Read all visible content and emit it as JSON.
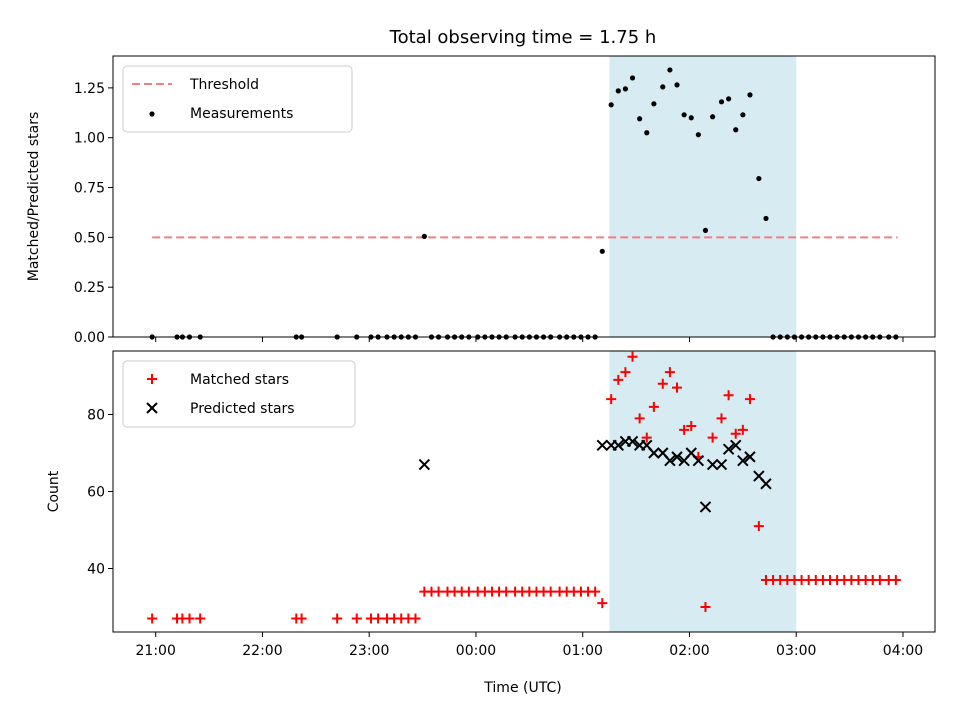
{
  "figure": {
    "title": "Total observing time = 1.75 h",
    "xlabel": "Time (UTC)",
    "x_ticks": [
      "21:00",
      "22:00",
      "23:00",
      "00:00",
      "01:00",
      "02:00",
      "03:00",
      "04:00"
    ]
  },
  "colors": {
    "threshold": "#f08080",
    "measurements": "#000000",
    "matched": "#ff0000",
    "predicted": "#000000",
    "span": "#add8e6"
  },
  "chart_data": [
    {
      "type": "scatter",
      "ylabel": "Matched/Predicted stars",
      "xlim": [
        "20:36",
        "04:18"
      ],
      "ylim": [
        0,
        1.41
      ],
      "y_ticks": [
        "0.00",
        "0.25",
        "0.50",
        "0.75",
        "1.00",
        "1.25"
      ],
      "grid": false,
      "legend_position": "upper left",
      "legend": [
        "Threshold",
        "Measurements"
      ],
      "shaded_span": [
        "01:15",
        "03:00"
      ],
      "threshold": {
        "name": "Threshold",
        "y": 0.5,
        "x_start": "20:58",
        "x_end": "03:57"
      },
      "series": [
        {
          "name": "Measurements",
          "points": [
            [
              "20:58",
              0
            ],
            [
              "21:12",
              0
            ],
            [
              "21:15",
              0
            ],
            [
              "21:19",
              0
            ],
            [
              "21:25",
              0
            ],
            [
              "22:19",
              0
            ],
            [
              "22:22",
              0
            ],
            [
              "22:42",
              0
            ],
            [
              "22:53",
              0
            ],
            [
              "23:01",
              0
            ],
            [
              "23:05",
              0
            ],
            [
              "23:10",
              0
            ],
            [
              "23:14",
              0
            ],
            [
              "23:18",
              0
            ],
            [
              "23:22",
              0
            ],
            [
              "23:26",
              0
            ],
            [
              "23:31",
              0.505
            ],
            [
              "23:35",
              0
            ],
            [
              "23:39",
              0
            ],
            [
              "23:44",
              0
            ],
            [
              "23:48",
              0
            ],
            [
              "23:52",
              0
            ],
            [
              "23:56",
              0
            ],
            [
              "00:01",
              0
            ],
            [
              "00:05",
              0
            ],
            [
              "00:09",
              0
            ],
            [
              "00:13",
              0
            ],
            [
              "00:17",
              0
            ],
            [
              "00:22",
              0
            ],
            [
              "00:26",
              0
            ],
            [
              "00:30",
              0
            ],
            [
              "00:34",
              0
            ],
            [
              "00:38",
              0
            ],
            [
              "00:42",
              0
            ],
            [
              "00:47",
              0
            ],
            [
              "00:51",
              0
            ],
            [
              "00:55",
              0
            ],
            [
              "00:59",
              0
            ],
            [
              "01:03",
              0
            ],
            [
              "01:07",
              0
            ],
            [
              "01:11",
              0.43
            ],
            [
              "01:16",
              1.165
            ],
            [
              "01:20",
              1.235
            ],
            [
              "01:24",
              1.245
            ],
            [
              "01:28",
              1.3
            ],
            [
              "01:32",
              1.095
            ],
            [
              "01:36",
              1.025
            ],
            [
              "01:40",
              1.17
            ],
            [
              "01:45",
              1.255
            ],
            [
              "01:49",
              1.34
            ],
            [
              "01:53",
              1.265
            ],
            [
              "01:57",
              1.115
            ],
            [
              "02:01",
              1.1
            ],
            [
              "02:05",
              1.015
            ],
            [
              "02:09",
              0.535
            ],
            [
              "02:13",
              1.105
            ],
            [
              "02:18",
              1.18
            ],
            [
              "02:22",
              1.195
            ],
            [
              "02:26",
              1.04
            ],
            [
              "02:30",
              1.115
            ],
            [
              "02:34",
              1.215
            ],
            [
              "02:39",
              0.795
            ],
            [
              "02:43",
              0.595
            ],
            [
              "02:47",
              0
            ],
            [
              "02:51",
              0
            ],
            [
              "02:55",
              0
            ],
            [
              "02:59",
              0
            ],
            [
              "03:03",
              0
            ],
            [
              "03:07",
              0
            ],
            [
              "03:11",
              0
            ],
            [
              "03:15",
              0
            ],
            [
              "03:19",
              0
            ],
            [
              "03:23",
              0
            ],
            [
              "03:27",
              0
            ],
            [
              "03:31",
              0
            ],
            [
              "03:35",
              0
            ],
            [
              "03:39",
              0
            ],
            [
              "03:43",
              0
            ],
            [
              "03:47",
              0
            ],
            [
              "03:52",
              0
            ],
            [
              "03:56",
              0
            ]
          ]
        }
      ]
    },
    {
      "type": "scatter",
      "ylabel": "Count",
      "xlim": [
        "20:36",
        "04:18"
      ],
      "ylim": [
        23.5,
        96.5
      ],
      "y_ticks": [
        "40",
        "60",
        "80"
      ],
      "grid": false,
      "legend_position": "upper left",
      "legend": [
        "Matched stars",
        "Predicted stars"
      ],
      "shaded_span": [
        "01:15",
        "03:00"
      ],
      "series": [
        {
          "name": "Matched stars",
          "marker": "+",
          "points": [
            [
              "20:58",
              27
            ],
            [
              "21:12",
              27
            ],
            [
              "21:15",
              27
            ],
            [
              "21:19",
              27
            ],
            [
              "21:25",
              27
            ],
            [
              "22:19",
              27
            ],
            [
              "22:22",
              27
            ],
            [
              "22:42",
              27
            ],
            [
              "22:53",
              27
            ],
            [
              "23:01",
              27
            ],
            [
              "23:05",
              27
            ],
            [
              "23:10",
              27
            ],
            [
              "23:14",
              27
            ],
            [
              "23:18",
              27
            ],
            [
              "23:22",
              27
            ],
            [
              "23:26",
              27
            ],
            [
              "23:31",
              34
            ],
            [
              "23:35",
              34
            ],
            [
              "23:39",
              34
            ],
            [
              "23:44",
              34
            ],
            [
              "23:48",
              34
            ],
            [
              "23:52",
              34
            ],
            [
              "23:56",
              34
            ],
            [
              "00:01",
              34
            ],
            [
              "00:05",
              34
            ],
            [
              "00:09",
              34
            ],
            [
              "00:13",
              34
            ],
            [
              "00:17",
              34
            ],
            [
              "00:22",
              34
            ],
            [
              "00:26",
              34
            ],
            [
              "00:30",
              34
            ],
            [
              "00:34",
              34
            ],
            [
              "00:38",
              34
            ],
            [
              "00:42",
              34
            ],
            [
              "00:47",
              34
            ],
            [
              "00:51",
              34
            ],
            [
              "00:55",
              34
            ],
            [
              "00:59",
              34
            ],
            [
              "01:03",
              34
            ],
            [
              "01:07",
              34
            ],
            [
              "01:11",
              31
            ],
            [
              "01:16",
              84
            ],
            [
              "01:20",
              89
            ],
            [
              "01:24",
              91
            ],
            [
              "01:28",
              95
            ],
            [
              "01:32",
              79
            ],
            [
              "01:36",
              74
            ],
            [
              "01:40",
              82
            ],
            [
              "01:45",
              88
            ],
            [
              "01:49",
              91
            ],
            [
              "01:53",
              87
            ],
            [
              "01:57",
              76
            ],
            [
              "02:01",
              77
            ],
            [
              "02:05",
              69
            ],
            [
              "02:09",
              30
            ],
            [
              "02:13",
              74
            ],
            [
              "02:18",
              79
            ],
            [
              "02:22",
              85
            ],
            [
              "02:26",
              75
            ],
            [
              "02:30",
              76
            ],
            [
              "02:34",
              84
            ],
            [
              "02:39",
              51
            ],
            [
              "02:43",
              37
            ],
            [
              "02:47",
              37
            ],
            [
              "02:51",
              37
            ],
            [
              "02:55",
              37
            ],
            [
              "02:59",
              37
            ],
            [
              "03:03",
              37
            ],
            [
              "03:07",
              37
            ],
            [
              "03:11",
              37
            ],
            [
              "03:15",
              37
            ],
            [
              "03:19",
              37
            ],
            [
              "03:23",
              37
            ],
            [
              "03:27",
              37
            ],
            [
              "03:31",
              37
            ],
            [
              "03:35",
              37
            ],
            [
              "03:39",
              37
            ],
            [
              "03:43",
              37
            ],
            [
              "03:47",
              37
            ],
            [
              "03:52",
              37
            ],
            [
              "03:56",
              37
            ]
          ]
        },
        {
          "name": "Predicted stars",
          "marker": "x",
          "points": [
            [
              "23:31",
              67
            ],
            [
              "01:11",
              72
            ],
            [
              "01:16",
              72
            ],
            [
              "01:20",
              72
            ],
            [
              "01:24",
              73
            ],
            [
              "01:28",
              73
            ],
            [
              "01:32",
              72
            ],
            [
              "01:36",
              72
            ],
            [
              "01:40",
              70
            ],
            [
              "01:45",
              70
            ],
            [
              "01:49",
              68
            ],
            [
              "01:53",
              69
            ],
            [
              "01:57",
              68
            ],
            [
              "02:01",
              70
            ],
            [
              "02:05",
              68
            ],
            [
              "02:09",
              56
            ],
            [
              "02:13",
              67
            ],
            [
              "02:18",
              67
            ],
            [
              "02:22",
              71
            ],
            [
              "02:26",
              72
            ],
            [
              "02:30",
              68
            ],
            [
              "02:34",
              69
            ],
            [
              "02:39",
              64
            ],
            [
              "02:43",
              62
            ]
          ]
        }
      ]
    }
  ]
}
